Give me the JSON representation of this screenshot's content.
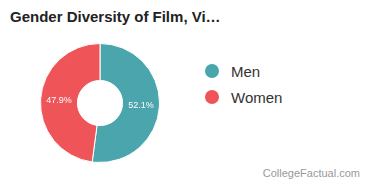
{
  "chart_data": {
    "type": "doughnut",
    "title": "Gender Diversity of Film, Vi…",
    "categories": [
      "Men",
      "Women"
    ],
    "values": [
      52.1,
      47.9
    ],
    "value_labels": [
      "52.1%",
      "47.9%"
    ],
    "data_labels": true,
    "colors": [
      "#4aa5ad",
      "#ef5558"
    ],
    "legend": "right",
    "source": "CollegeFactual.com"
  }
}
